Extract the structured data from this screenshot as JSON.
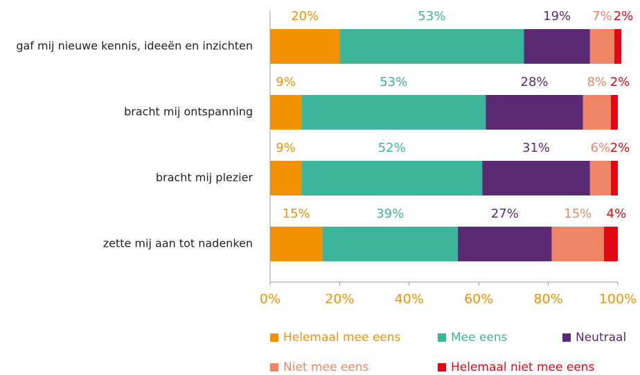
{
  "chart_data": {
    "type": "stacked-bar-horizontal",
    "categories": [
      "gaf mij nieuwe kennis, ideeën en inzichten",
      "bracht mij ontspanning",
      "bracht mij plezier",
      "zette mij aan tot nadenken"
    ],
    "series": [
      {
        "name": "Helemaal mee eens",
        "color": "#f39200",
        "values": [
          20,
          9,
          9,
          15
        ],
        "value_labels": [
          "20%",
          "9%",
          "9%",
          "15%"
        ]
      },
      {
        "name": "Mee eens",
        "color": "#3db59a",
        "values": [
          53,
          53,
          52,
          39
        ],
        "value_labels": [
          "53%",
          "53%",
          "52%",
          "39%"
        ]
      },
      {
        "name": "Neutraal",
        "color": "#5b2a73",
        "values": [
          19,
          28,
          31,
          27
        ],
        "value_labels": [
          "19%",
          "28%",
          "31%",
          "27%"
        ]
      },
      {
        "name": "Niet mee eens",
        "color": "#f08566",
        "values": [
          7,
          8,
          6,
          15
        ],
        "value_labels": [
          "7%",
          "8%",
          "6%",
          "15%"
        ]
      },
      {
        "name": "Helemaal niet mee eens",
        "color": "#e30613",
        "values": [
          2,
          2,
          2,
          4
        ],
        "value_labels": [
          "2%",
          "2%",
          "2%",
          "4%"
        ]
      }
    ],
    "xlim": [
      0,
      100
    ],
    "xticks": [
      {
        "value": 0,
        "label": "0%"
      },
      {
        "value": 20,
        "label": "20%"
      },
      {
        "value": 40,
        "label": "40%"
      },
      {
        "value": 60,
        "label": "60%"
      },
      {
        "value": 80,
        "label": "80%"
      },
      {
        "value": 100,
        "label": "100%"
      }
    ],
    "grid": false
  }
}
